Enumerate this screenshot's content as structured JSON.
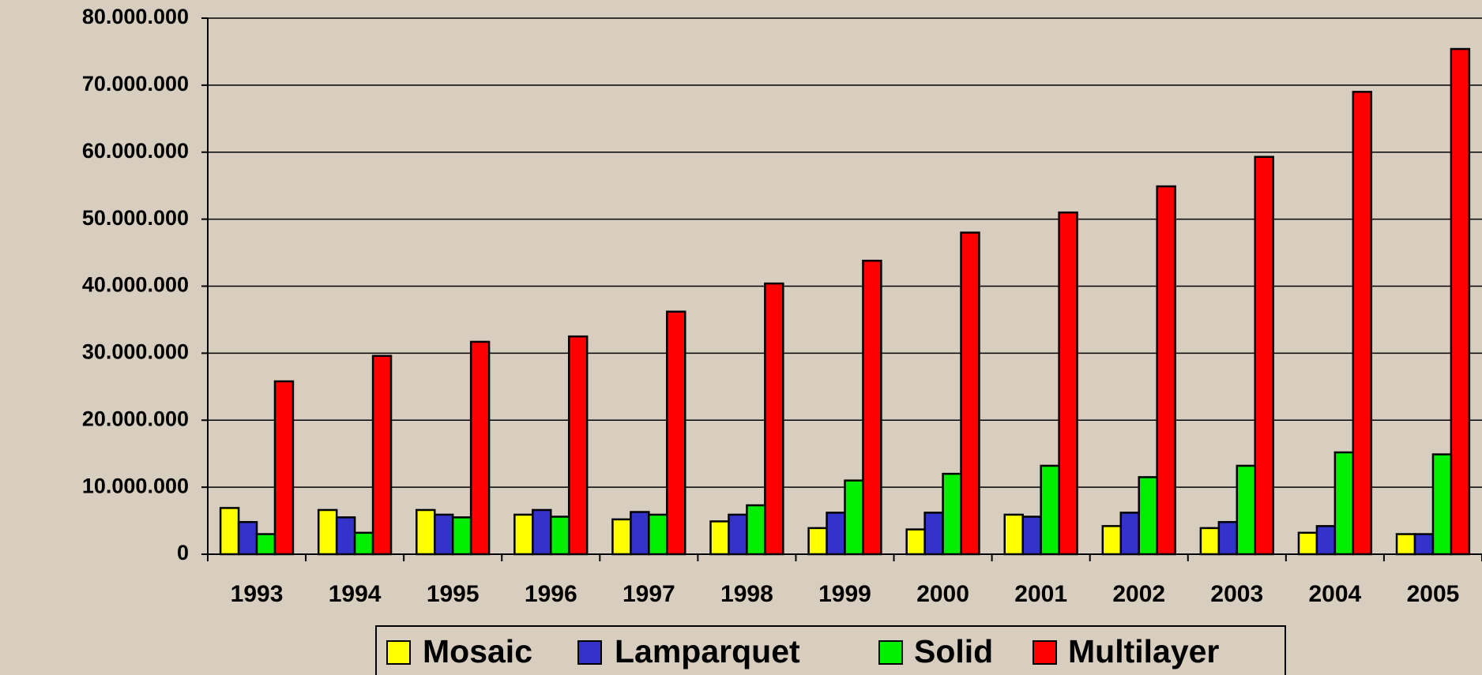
{
  "chart_data": {
    "type": "bar",
    "categories": [
      "1993",
      "1994",
      "1995",
      "1996",
      "1997",
      "1998",
      "1999",
      "2000",
      "2001",
      "2002",
      "2003",
      "2004",
      "2005"
    ],
    "series": [
      {
        "name": "Mosaic",
        "color": "#ffff00",
        "values": [
          6900000,
          6600000,
          6600000,
          5900000,
          5200000,
          4900000,
          3900000,
          3700000,
          5900000,
          4200000,
          3900000,
          3200000,
          3000000
        ]
      },
      {
        "name": "Lamparquet",
        "color": "#3333cc",
        "values": [
          4800000,
          5500000,
          5900000,
          6600000,
          6300000,
          5900000,
          6200000,
          6200000,
          5600000,
          6200000,
          4800000,
          4200000,
          3000000
        ]
      },
      {
        "name": "Solid",
        "color": "#00ee00",
        "values": [
          3000000,
          3200000,
          5500000,
          5600000,
          5900000,
          7300000,
          11000000,
          12000000,
          13200000,
          11500000,
          13200000,
          15200000,
          14900000
        ]
      },
      {
        "name": "Multilayer",
        "color": "#ff0000",
        "values": [
          25800000,
          29600000,
          31700000,
          32500000,
          36200000,
          40400000,
          43800000,
          48000000,
          51000000,
          54900000,
          59300000,
          69000000,
          75400000
        ]
      }
    ],
    "ylim": [
      0,
      80000000
    ],
    "yticks": [
      0,
      {
        "value": 10000000,
        "label": "10.000.000"
      },
      {
        "value": 20000000,
        "label": "20.000.000"
      },
      {
        "value": 30000000,
        "label": "30.000.000"
      },
      {
        "value": 40000000,
        "label": "40.000.000"
      },
      {
        "value": 50000000,
        "label": "50.000.000"
      },
      {
        "value": 60000000,
        "label": "60.000.000"
      },
      {
        "value": 70000000,
        "label": "70.000.000"
      },
      {
        "value": 80000000,
        "label": "80.000.000"
      }
    ],
    "grid": true,
    "legend": "bottom"
  }
}
